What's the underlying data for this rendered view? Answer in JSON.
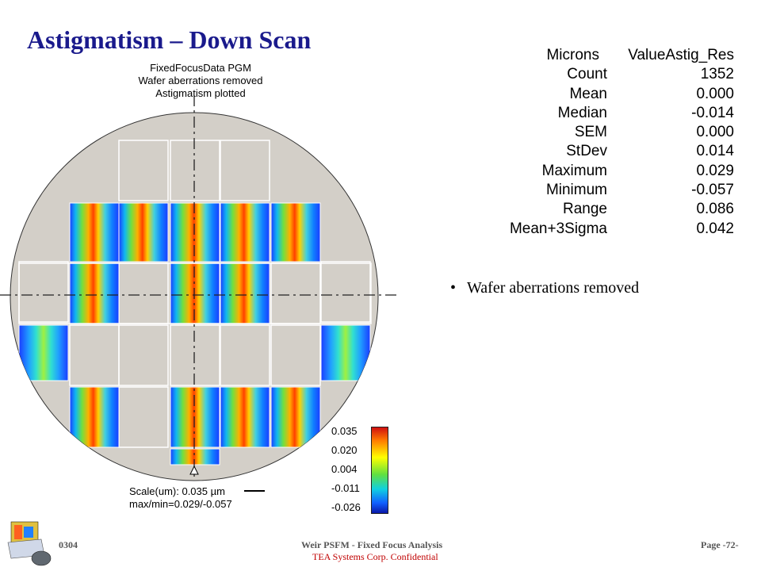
{
  "slide": {
    "title": "Astigmatism – Down Scan",
    "bullet": "Wafer aberrations removed"
  },
  "plot": {
    "header_lines": [
      "FixedFocusData PGM",
      "Wafer aberrations removed",
      "Astigmatism plotted"
    ],
    "scale_line": "Scale(um): 0.035 µm",
    "maxmin_line": "max/min=0.029/-0.057",
    "colorbar_ticks": [
      "0.035",
      "0.020",
      "0.004",
      "-0.011",
      "-0.026"
    ],
    "colors": {
      "wafer": "#d3cfc8",
      "field_border": "#ffffff",
      "low": "#1040ff",
      "high": "#ff2000"
    }
  },
  "stats": {
    "header": {
      "label": "Microns",
      "value": "ValueAstig_Res"
    },
    "rows": [
      {
        "label": "Count",
        "value": "1352"
      },
      {
        "label": "Mean",
        "value": "0.000"
      },
      {
        "label": "Median",
        "value": "-0.014"
      },
      {
        "label": "SEM",
        "value": "0.000"
      },
      {
        "label": "StDev",
        "value": "0.014"
      },
      {
        "label": "Maximum",
        "value": "0.029"
      },
      {
        "label": "Minimum",
        "value": "-0.057"
      },
      {
        "label": "Range",
        "value": "0.086"
      },
      {
        "label": "Mean+3Sigma",
        "value": "0.042"
      }
    ]
  },
  "footer": {
    "left": "0304",
    "center": "Weir PSFM - Fixed Focus Analysis",
    "confidential": "TEA Systems Corp. Confidential",
    "page": "Page -72-"
  },
  "icons": [
    "logo-icon"
  ]
}
